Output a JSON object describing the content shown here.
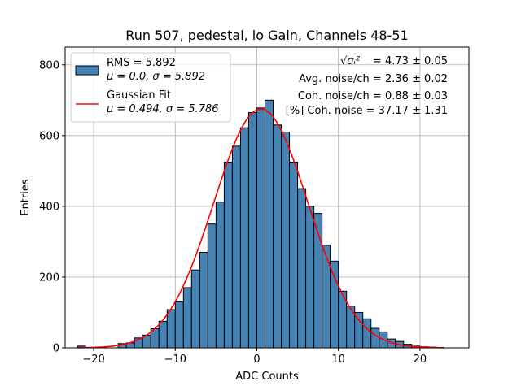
{
  "chart_data": {
    "type": "bar",
    "title": "Run 507, pedestal, lo Gain, Channels 48-51",
    "xlabel": "ADC Counts",
    "ylabel": "Entries",
    "xlim": [
      -23.5,
      26
    ],
    "ylim": [
      0,
      850
    ],
    "xticks": [
      -20,
      -10,
      0,
      10,
      20
    ],
    "xtick_labels": [
      "−20",
      "−10",
      "0",
      "10",
      "20"
    ],
    "yticks": [
      0,
      200,
      400,
      600,
      800
    ],
    "ytick_labels": [
      "0",
      "200",
      "400",
      "600",
      "800"
    ],
    "grid": true,
    "bin_width": 1,
    "bin_start": -22,
    "values": [
      5,
      0,
      0,
      0,
      0,
      12,
      14,
      28,
      36,
      54,
      75,
      108,
      130,
      170,
      220,
      270,
      350,
      412,
      525,
      570,
      622,
      665,
      678,
      700,
      630,
      610,
      525,
      450,
      400,
      380,
      290,
      245,
      160,
      118,
      100,
      82,
      55,
      45,
      25,
      18,
      10,
      5,
      3,
      2,
      0
    ],
    "series": [
      {
        "name": "RMS = 5.892",
        "name_line2": "μ = 0.0, σ = 5.892",
        "kind": "histogram",
        "color": "#4682b4",
        "edgecolor": "#000000"
      },
      {
        "name": "Gaussian Fit",
        "name_line2": "μ = 0.494, σ = 5.786",
        "kind": "fit",
        "color": "#ff0000",
        "mu": 0.494,
        "sigma": 5.786,
        "amplitude": 675,
        "x_range": [
          -22,
          23
        ]
      }
    ],
    "legend_position": "upper-left",
    "annotations": [
      {
        "formula": "√σᵢ²",
        "text": " = 4.73 ± 0.05"
      },
      {
        "text": "Avg. noise/ch = 2.36 ± 0.02"
      },
      {
        "text": "Coh. noise/ch = 0.88 ± 0.03"
      },
      {
        "text": "[%] Coh. noise = 37.17 ± 1.31"
      }
    ]
  }
}
